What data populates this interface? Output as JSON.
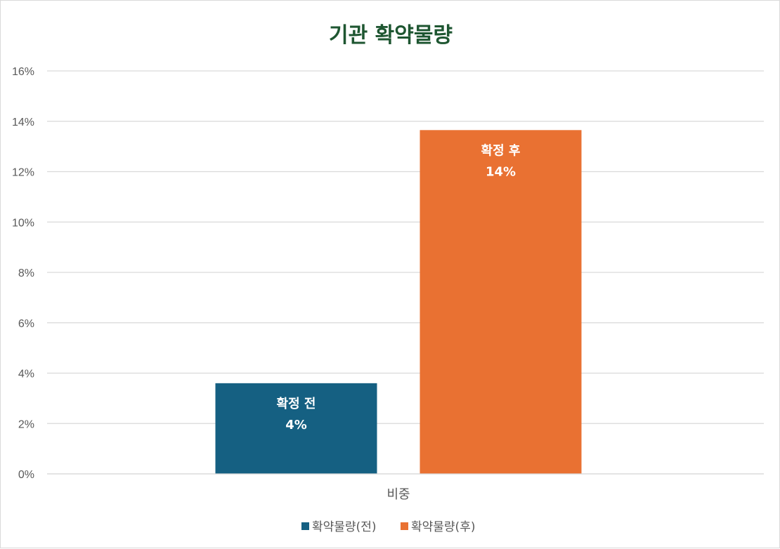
{
  "chart_data": {
    "type": "bar",
    "title": "기관 확약물량",
    "categories": [
      "비중"
    ],
    "series": [
      {
        "name": "확약물량(전)",
        "values": [
          3.6
        ],
        "label_name": "확정 전",
        "label_value": "4%"
      },
      {
        "name": "확약물량(후)",
        "values": [
          13.65
        ],
        "label_name": "확정 후",
        "label_value": "14%"
      }
    ],
    "ylim": [
      0,
      16
    ],
    "yticks": [
      "0%",
      "2%",
      "4%",
      "6%",
      "8%",
      "10%",
      "12%",
      "14%",
      "16%"
    ],
    "grid": true,
    "legend_position": "bottom",
    "colors": {
      "title": "#1e5631",
      "series": [
        "#156082",
        "#e97132"
      ],
      "grid": "#d9d9d9",
      "text": "#595959"
    }
  }
}
